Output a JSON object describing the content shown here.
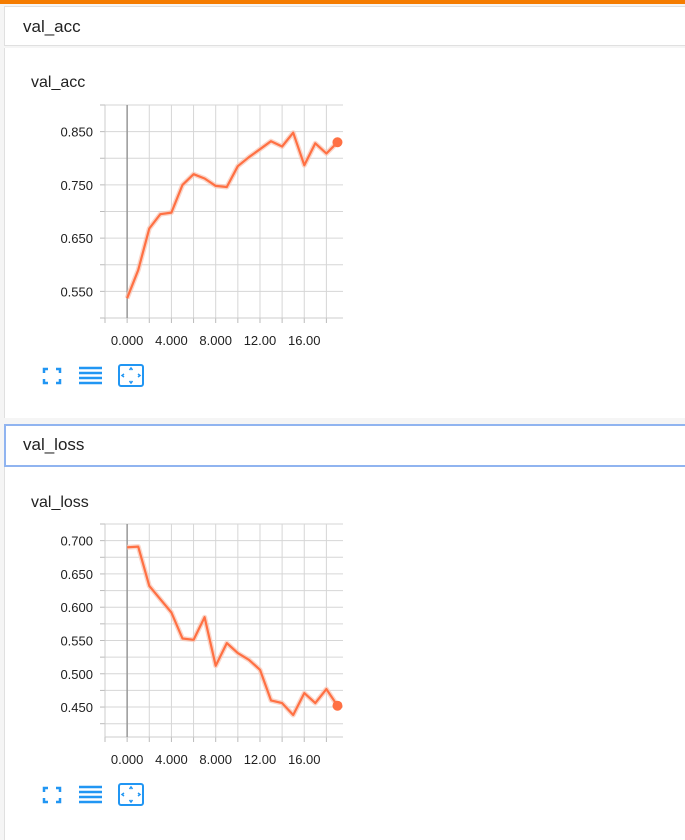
{
  "sections": [
    {
      "header": "val_acc"
    },
    {
      "header": "val_loss"
    }
  ],
  "chart_data": [
    {
      "type": "line",
      "title": "val_acc",
      "x": [
        0,
        1,
        2,
        3,
        4,
        5,
        6,
        7,
        8,
        9,
        10,
        11,
        12,
        13,
        14,
        15,
        16,
        17,
        18,
        19
      ],
      "series": [
        {
          "values": [
            0.537,
            0.59,
            0.668,
            0.695,
            0.698,
            0.75,
            0.77,
            0.762,
            0.748,
            0.746,
            0.785,
            0.802,
            0.817,
            0.832,
            0.822,
            0.848,
            0.787,
            0.828,
            0.809,
            0.83
          ]
        }
      ],
      "xlim": [
        -2,
        19.5
      ],
      "ylim": [
        0.5,
        0.9
      ],
      "xticks": [
        0,
        4,
        8,
        12,
        16
      ],
      "xtick_labels": [
        "0.000",
        "4.000",
        "8.000",
        "12.00",
        "16.00"
      ],
      "yticks": [
        0.55,
        0.65,
        0.75,
        0.85
      ],
      "ytick_labels": [
        "0.550",
        "0.650",
        "0.750",
        "0.850"
      ],
      "grid": true,
      "color": "#ff7043"
    },
    {
      "type": "line",
      "title": "val_loss",
      "x": [
        0,
        1,
        2,
        3,
        4,
        5,
        6,
        7,
        8,
        9,
        10,
        11,
        12,
        13,
        14,
        15,
        16,
        17,
        18,
        19
      ],
      "series": [
        {
          "values": [
            0.69,
            0.691,
            0.632,
            0.612,
            0.592,
            0.553,
            0.551,
            0.585,
            0.512,
            0.546,
            0.531,
            0.521,
            0.506,
            0.46,
            0.456,
            0.438,
            0.471,
            0.456,
            0.477,
            0.452
          ]
        }
      ],
      "xlim": [
        -2,
        19.5
      ],
      "ylim": [
        0.405,
        0.725
      ],
      "xticks": [
        0,
        4,
        8,
        12,
        16
      ],
      "xtick_labels": [
        "0.000",
        "4.000",
        "8.000",
        "12.00",
        "16.00"
      ],
      "yticks": [
        0.45,
        0.5,
        0.55,
        0.6,
        0.65,
        0.7
      ],
      "ytick_labels": [
        "0.450",
        "0.500",
        "0.550",
        "0.600",
        "0.650",
        "0.700"
      ],
      "grid": true,
      "color": "#ff7043"
    }
  ],
  "icons": {
    "expand": "fullscreen-icon",
    "toggle_log": "list-lines-icon",
    "fit_domain": "fit-domain-icon"
  },
  "colors": {
    "accent": "#f57c00",
    "icon": "#2196f3"
  }
}
